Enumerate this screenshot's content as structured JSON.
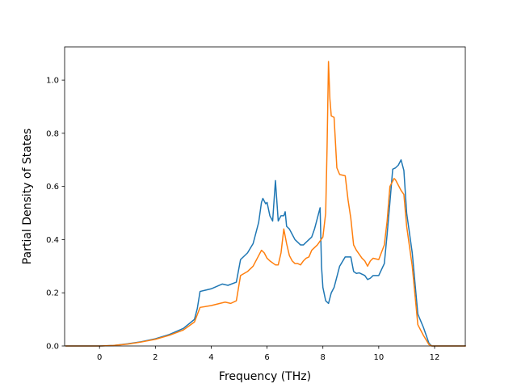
{
  "chart_data": {
    "type": "line",
    "title": "",
    "xlabel": "Frequency (THz)",
    "ylabel": "Partial Density of States",
    "xlim": [
      -1.25,
      13.1
    ],
    "ylim": [
      0.0,
      1.125
    ],
    "xticks": [
      0,
      2,
      4,
      6,
      8,
      10,
      12
    ],
    "xtick_labels": [
      "0",
      "2",
      "4",
      "6",
      "8",
      "10",
      "12"
    ],
    "yticks": [
      0.0,
      0.2,
      0.4,
      0.6,
      0.8,
      1.0
    ],
    "ytick_labels": [
      "0.0",
      "0.2",
      "0.4",
      "0.6",
      "0.8",
      "1.0"
    ],
    "grid": false,
    "legend": "none",
    "series": [
      {
        "color": "#1f77b4",
        "points": [
          [
            -1.2,
            0.0
          ],
          [
            0.0,
            0.0
          ],
          [
            0.5,
            0.002
          ],
          [
            1.0,
            0.008
          ],
          [
            1.5,
            0.016
          ],
          [
            2.0,
            0.027
          ],
          [
            2.5,
            0.043
          ],
          [
            3.0,
            0.066
          ],
          [
            3.4,
            0.1
          ],
          [
            3.5,
            0.14
          ],
          [
            3.6,
            0.205
          ],
          [
            4.0,
            0.215
          ],
          [
            4.4,
            0.233
          ],
          [
            4.6,
            0.228
          ],
          [
            4.9,
            0.24
          ],
          [
            5.05,
            0.325
          ],
          [
            5.3,
            0.35
          ],
          [
            5.5,
            0.385
          ],
          [
            5.7,
            0.465
          ],
          [
            5.8,
            0.54
          ],
          [
            5.85,
            0.555
          ],
          [
            5.95,
            0.535
          ],
          [
            6.0,
            0.54
          ],
          [
            6.1,
            0.49
          ],
          [
            6.2,
            0.47
          ],
          [
            6.3,
            0.622
          ],
          [
            6.4,
            0.47
          ],
          [
            6.5,
            0.49
          ],
          [
            6.6,
            0.49
          ],
          [
            6.65,
            0.505
          ],
          [
            6.7,
            0.45
          ],
          [
            6.8,
            0.44
          ],
          [
            6.9,
            0.42
          ],
          [
            7.0,
            0.4
          ],
          [
            7.1,
            0.39
          ],
          [
            7.2,
            0.38
          ],
          [
            7.3,
            0.38
          ],
          [
            7.4,
            0.39
          ],
          [
            7.5,
            0.4
          ],
          [
            7.6,
            0.41
          ],
          [
            7.7,
            0.44
          ],
          [
            7.8,
            0.48
          ],
          [
            7.9,
            0.52
          ],
          [
            7.95,
            0.3
          ],
          [
            8.0,
            0.22
          ],
          [
            8.1,
            0.17
          ],
          [
            8.2,
            0.16
          ],
          [
            8.3,
            0.2
          ],
          [
            8.4,
            0.22
          ],
          [
            8.6,
            0.3
          ],
          [
            8.8,
            0.335
          ],
          [
            9.0,
            0.335
          ],
          [
            9.1,
            0.28
          ],
          [
            9.2,
            0.273
          ],
          [
            9.3,
            0.275
          ],
          [
            9.4,
            0.27
          ],
          [
            9.5,
            0.265
          ],
          [
            9.6,
            0.25
          ],
          [
            9.7,
            0.255
          ],
          [
            9.8,
            0.265
          ],
          [
            10.0,
            0.265
          ],
          [
            10.2,
            0.31
          ],
          [
            10.3,
            0.42
          ],
          [
            10.4,
            0.54
          ],
          [
            10.5,
            0.665
          ],
          [
            10.6,
            0.67
          ],
          [
            10.7,
            0.68
          ],
          [
            10.8,
            0.7
          ],
          [
            10.9,
            0.66
          ],
          [
            11.0,
            0.5
          ],
          [
            11.2,
            0.35
          ],
          [
            11.4,
            0.12
          ],
          [
            11.6,
            0.07
          ],
          [
            11.8,
            0.01
          ],
          [
            11.9,
            0.0
          ],
          [
            13.1,
            0.0
          ]
        ]
      },
      {
        "color": "#ff7f0e",
        "points": [
          [
            -1.2,
            0.0
          ],
          [
            0.0,
            0.0
          ],
          [
            0.5,
            0.002
          ],
          [
            1.0,
            0.007
          ],
          [
            1.5,
            0.015
          ],
          [
            2.0,
            0.025
          ],
          [
            2.5,
            0.04
          ],
          [
            3.0,
            0.06
          ],
          [
            3.4,
            0.09
          ],
          [
            3.6,
            0.145
          ],
          [
            4.0,
            0.152
          ],
          [
            4.5,
            0.165
          ],
          [
            4.7,
            0.16
          ],
          [
            4.9,
            0.17
          ],
          [
            5.05,
            0.265
          ],
          [
            5.3,
            0.28
          ],
          [
            5.5,
            0.3
          ],
          [
            5.7,
            0.34
          ],
          [
            5.8,
            0.36
          ],
          [
            5.9,
            0.35
          ],
          [
            6.0,
            0.33
          ],
          [
            6.1,
            0.32
          ],
          [
            6.3,
            0.305
          ],
          [
            6.4,
            0.305
          ],
          [
            6.5,
            0.35
          ],
          [
            6.6,
            0.44
          ],
          [
            6.7,
            0.385
          ],
          [
            6.8,
            0.34
          ],
          [
            6.9,
            0.32
          ],
          [
            7.0,
            0.31
          ],
          [
            7.1,
            0.31
          ],
          [
            7.2,
            0.305
          ],
          [
            7.3,
            0.32
          ],
          [
            7.4,
            0.33
          ],
          [
            7.5,
            0.335
          ],
          [
            7.6,
            0.36
          ],
          [
            7.8,
            0.38
          ],
          [
            8.0,
            0.41
          ],
          [
            8.1,
            0.5
          ],
          [
            8.15,
            0.75
          ],
          [
            8.2,
            1.07
          ],
          [
            8.25,
            0.93
          ],
          [
            8.3,
            0.865
          ],
          [
            8.4,
            0.86
          ],
          [
            8.5,
            0.67
          ],
          [
            8.6,
            0.645
          ],
          [
            8.8,
            0.64
          ],
          [
            8.9,
            0.55
          ],
          [
            9.0,
            0.48
          ],
          [
            9.1,
            0.38
          ],
          [
            9.2,
            0.36
          ],
          [
            9.4,
            0.33
          ],
          [
            9.5,
            0.32
          ],
          [
            9.6,
            0.3
          ],
          [
            9.7,
            0.32
          ],
          [
            9.8,
            0.33
          ],
          [
            10.0,
            0.325
          ],
          [
            10.2,
            0.38
          ],
          [
            10.3,
            0.47
          ],
          [
            10.4,
            0.6
          ],
          [
            10.5,
            0.62
          ],
          [
            10.55,
            0.63
          ],
          [
            10.6,
            0.625
          ],
          [
            10.8,
            0.585
          ],
          [
            10.9,
            0.57
          ],
          [
            11.0,
            0.45
          ],
          [
            11.2,
            0.3
          ],
          [
            11.4,
            0.08
          ],
          [
            11.6,
            0.04
          ],
          [
            11.8,
            0.005
          ],
          [
            11.9,
            0.0
          ],
          [
            13.1,
            0.0
          ]
        ]
      }
    ]
  }
}
